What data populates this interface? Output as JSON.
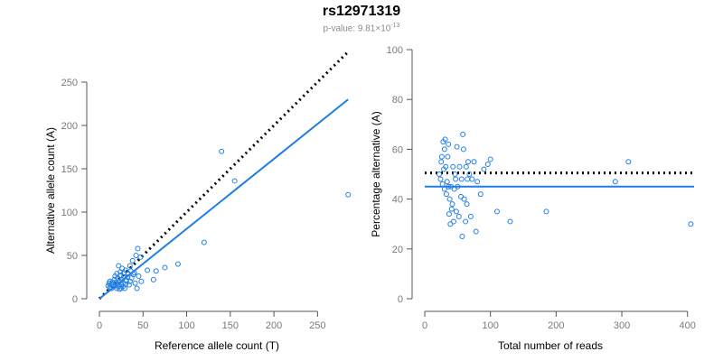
{
  "header": {
    "title": "rs12971319",
    "pvalue_prefix": "p-value: 9.81×10",
    "pvalue_exp": "-13"
  },
  "colors": {
    "points": "#1f7ee6",
    "fit_line": "#1f7ee6",
    "reference_line": "#000000",
    "axis": "#555555"
  },
  "chart_data": [
    {
      "type": "scatter",
      "xlabel": "Reference allele count (T)",
      "ylabel": "Alternative allele count (A)",
      "xlim": [
        0,
        290
      ],
      "ylim": [
        0,
        250
      ],
      "xticks": [
        0,
        50,
        100,
        150,
        200,
        250
      ],
      "yticks": [
        0,
        50,
        100,
        150,
        200,
        250
      ],
      "points": [
        [
          10,
          15
        ],
        [
          11,
          18
        ],
        [
          12,
          13
        ],
        [
          12,
          20
        ],
        [
          13,
          16
        ],
        [
          14,
          17
        ],
        [
          14,
          12
        ],
        [
          15,
          19
        ],
        [
          16,
          14
        ],
        [
          17,
          22
        ],
        [
          18,
          15
        ],
        [
          18,
          26
        ],
        [
          19,
          19
        ],
        [
          20,
          12
        ],
        [
          20,
          29
        ],
        [
          21,
          17
        ],
        [
          21,
          24
        ],
        [
          22,
          38
        ],
        [
          22,
          14
        ],
        [
          23,
          20
        ],
        [
          23,
          11
        ],
        [
          24,
          27
        ],
        [
          24,
          31
        ],
        [
          25,
          16
        ],
        [
          25,
          12
        ],
        [
          26,
          22
        ],
        [
          26,
          35
        ],
        [
          27,
          18
        ],
        [
          27,
          14
        ],
        [
          28,
          25
        ],
        [
          28,
          30
        ],
        [
          29,
          12
        ],
        [
          30,
          17
        ],
        [
          30,
          33
        ],
        [
          31,
          21
        ],
        [
          32,
          25
        ],
        [
          33,
          29
        ],
        [
          34,
          16
        ],
        [
          35,
          38
        ],
        [
          35,
          20
        ],
        [
          36,
          32
        ],
        [
          37,
          24
        ],
        [
          38,
          44
        ],
        [
          39,
          28
        ],
        [
          40,
          30
        ],
        [
          41,
          18
        ],
        [
          42,
          50
        ],
        [
          43,
          12
        ],
        [
          44,
          58
        ],
        [
          45,
          26
        ],
        [
          47,
          48
        ],
        [
          48,
          20
        ],
        [
          55,
          33
        ],
        [
          62,
          22
        ],
        [
          65,
          32
        ],
        [
          75,
          36
        ],
        [
          90,
          40
        ],
        [
          120,
          65
        ],
        [
          140,
          170
        ],
        [
          155,
          136
        ],
        [
          285,
          120
        ]
      ],
      "fit_line": {
        "from": [
          0,
          0
        ],
        "to": [
          285,
          230
        ]
      },
      "reference_line": {
        "from": [
          0,
          0
        ],
        "to": [
          285,
          285
        ]
      }
    },
    {
      "type": "scatter",
      "xlabel": "Total number of reads",
      "ylabel": "Percentage alternative (A)",
      "xlim": [
        0,
        410
      ],
      "ylim": [
        0,
        100
      ],
      "xticks": [
        0,
        100,
        200,
        300,
        400
      ],
      "yticks": [
        0,
        20,
        40,
        60,
        80,
        100
      ],
      "points": [
        [
          22,
          50
        ],
        [
          24,
          48
        ],
        [
          25,
          55
        ],
        [
          26,
          57
        ],
        [
          27,
          46
        ],
        [
          28,
          63
        ],
        [
          29,
          52
        ],
        [
          30,
          60
        ],
        [
          30,
          44
        ],
        [
          31,
          64
        ],
        [
          32,
          53
        ],
        [
          33,
          42
        ],
        [
          34,
          47
        ],
        [
          35,
          57
        ],
        [
          36,
          62
        ],
        [
          36,
          45
        ],
        [
          37,
          34
        ],
        [
          38,
          40
        ],
        [
          39,
          30
        ],
        [
          40,
          45
        ],
        [
          41,
          36
        ],
        [
          42,
          38
        ],
        [
          43,
          53
        ],
        [
          44,
          31
        ],
        [
          45,
          44
        ],
        [
          46,
          50
        ],
        [
          47,
          48
        ],
        [
          48,
          35
        ],
        [
          49,
          61
        ],
        [
          50,
          45
        ],
        [
          52,
          33
        ],
        [
          53,
          53
        ],
        [
          55,
          41
        ],
        [
          56,
          48
        ],
        [
          57,
          25
        ],
        [
          58,
          66
        ],
        [
          59,
          60
        ],
        [
          60,
          40
        ],
        [
          62,
          31
        ],
        [
          63,
          53
        ],
        [
          64,
          38
        ],
        [
          65,
          48
        ],
        [
          66,
          55
        ],
        [
          68,
          50
        ],
        [
          70,
          33
        ],
        [
          72,
          48
        ],
        [
          75,
          55
        ],
        [
          78,
          27
        ],
        [
          80,
          47
        ],
        [
          85,
          42
        ],
        [
          90,
          52
        ],
        [
          96,
          54
        ],
        [
          100,
          56
        ],
        [
          110,
          35
        ],
        [
          130,
          31
        ],
        [
          185,
          35
        ],
        [
          290,
          47
        ],
        [
          310,
          55
        ],
        [
          405,
          30
        ]
      ],
      "fit_line": {
        "from": [
          0,
          45
        ],
        "to": [
          410,
          45
        ]
      },
      "reference_line": {
        "from": [
          0,
          50.5
        ],
        "to": [
          410,
          50.5
        ]
      }
    }
  ]
}
